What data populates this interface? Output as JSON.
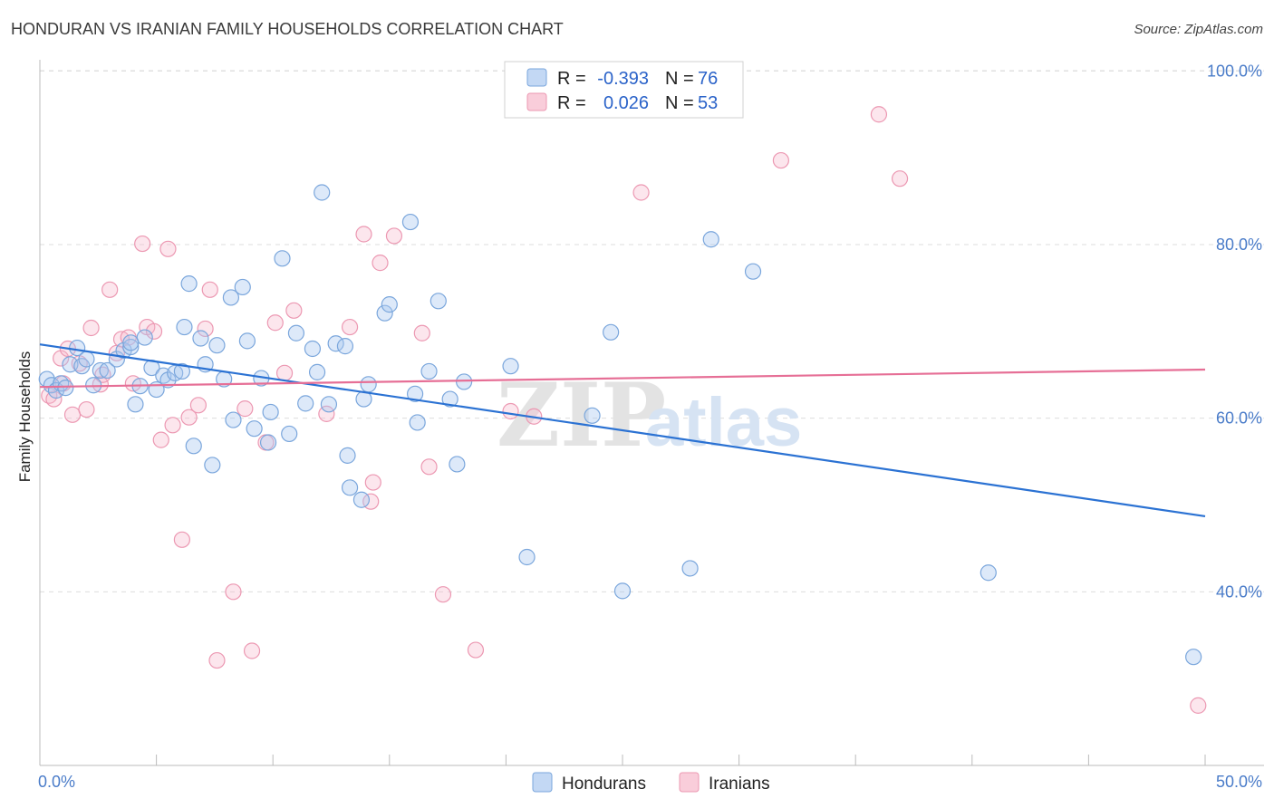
{
  "title": "HONDURAN VS IRANIAN FAMILY HOUSEHOLDS CORRELATION CHART",
  "source": "Source: ZipAtlas.com",
  "watermark": {
    "zip": "ZIP",
    "atlas": "atlas"
  },
  "legend": {
    "rows": [
      {
        "r_label": "R =",
        "r_value": "-0.393",
        "n_label": "N =",
        "n_value": "76"
      },
      {
        "r_label": "R =",
        "r_value": "0.026",
        "n_label": "N =",
        "n_value": "53"
      }
    ]
  },
  "bottom_legend": [
    "Hondurans",
    "Iranians"
  ],
  "colors": {
    "blue_fill": "#a9c8ef",
    "blue_stroke": "#7aa6dc",
    "blue_line": "#2b72d3",
    "pink_fill": "#f6b8cb",
    "pink_stroke": "#ec98b2",
    "pink_line": "#e66f96",
    "axis_text": "#4a7cc9",
    "grid": "#dddddd"
  },
  "chart_data": {
    "type": "scatter",
    "title": "HONDURAN VS IRANIAN FAMILY HOUSEHOLDS CORRELATION CHART",
    "xlabel": "",
    "ylabel": "Family Households",
    "xlim": [
      0,
      50
    ],
    "ylim": [
      20,
      104
    ],
    "x_tick_labels": [
      "0.0%",
      "50.0%"
    ],
    "y_ticks": [
      40,
      60,
      80,
      100
    ],
    "y_tick_labels": [
      "40.0%",
      "60.0%",
      "80.0%",
      "100.0%"
    ],
    "grid": true,
    "legend_position": "top-center",
    "series": [
      {
        "name": "Hondurans",
        "r": -0.393,
        "n": 76,
        "trend": {
          "x": [
            0,
            50
          ],
          "y": [
            68.5,
            48.7
          ]
        },
        "points": [
          [
            0.3,
            64.5
          ],
          [
            0.5,
            63.8
          ],
          [
            0.7,
            63.2
          ],
          [
            0.9,
            64.0
          ],
          [
            1.1,
            63.5
          ],
          [
            1.3,
            66.2
          ],
          [
            1.6,
            68.1
          ],
          [
            1.8,
            66.0
          ],
          [
            2.0,
            66.8
          ],
          [
            2.3,
            63.8
          ],
          [
            2.6,
            65.5
          ],
          [
            2.9,
            65.5
          ],
          [
            3.3,
            66.8
          ],
          [
            3.6,
            67.8
          ],
          [
            3.9,
            68.2
          ],
          [
            4.1,
            61.6
          ],
          [
            4.3,
            63.7
          ],
          [
            4.5,
            69.3
          ],
          [
            4.8,
            65.8
          ],
          [
            5.0,
            63.3
          ],
          [
            5.3,
            64.9
          ],
          [
            5.5,
            64.4
          ],
          [
            5.8,
            65.2
          ],
          [
            6.1,
            65.4
          ],
          [
            6.2,
            70.5
          ],
          [
            6.4,
            75.5
          ],
          [
            6.6,
            56.8
          ],
          [
            6.9,
            69.2
          ],
          [
            7.1,
            66.2
          ],
          [
            7.4,
            54.6
          ],
          [
            7.6,
            68.4
          ],
          [
            7.9,
            64.5
          ],
          [
            8.2,
            73.9
          ],
          [
            8.3,
            59.8
          ],
          [
            8.7,
            75.1
          ],
          [
            8.9,
            68.9
          ],
          [
            9.2,
            58.8
          ],
          [
            9.5,
            64.6
          ],
          [
            9.8,
            57.2
          ],
          [
            9.9,
            60.7
          ],
          [
            10.4,
            78.4
          ],
          [
            10.7,
            58.2
          ],
          [
            11.0,
            69.8
          ],
          [
            11.4,
            61.7
          ],
          [
            11.7,
            68.0
          ],
          [
            11.9,
            65.3
          ],
          [
            12.1,
            86.0
          ],
          [
            12.4,
            61.6
          ],
          [
            12.7,
            68.6
          ],
          [
            13.1,
            68.3
          ],
          [
            13.2,
            55.7
          ],
          [
            13.3,
            52.0
          ],
          [
            13.8,
            50.6
          ],
          [
            13.9,
            62.2
          ],
          [
            14.1,
            63.9
          ],
          [
            14.8,
            72.1
          ],
          [
            15.0,
            73.1
          ],
          [
            15.9,
            82.6
          ],
          [
            16.1,
            62.8
          ],
          [
            16.2,
            59.5
          ],
          [
            16.7,
            65.4
          ],
          [
            17.1,
            73.5
          ],
          [
            17.6,
            62.2
          ],
          [
            17.9,
            54.7
          ],
          [
            18.2,
            64.2
          ],
          [
            20.2,
            66.0
          ],
          [
            20.9,
            44.0
          ],
          [
            23.7,
            60.3
          ],
          [
            24.5,
            69.9
          ],
          [
            25.0,
            40.1
          ],
          [
            27.9,
            42.7
          ],
          [
            28.8,
            80.6
          ],
          [
            30.6,
            76.9
          ],
          [
            40.7,
            42.2
          ],
          [
            49.5,
            32.5
          ],
          [
            3.9,
            68.7
          ]
        ]
      },
      {
        "name": "Iranians",
        "r": 0.026,
        "n": 53,
        "trend": {
          "x": [
            0,
            50
          ],
          "y": [
            63.6,
            65.6
          ]
        },
        "points": [
          [
            0.4,
            62.6
          ],
          [
            0.6,
            62.2
          ],
          [
            0.9,
            66.9
          ],
          [
            1.2,
            68.0
          ],
          [
            1.4,
            60.4
          ],
          [
            1.7,
            66.3
          ],
          [
            2.0,
            61.0
          ],
          [
            2.2,
            70.4
          ],
          [
            2.6,
            63.9
          ],
          [
            3.0,
            74.8
          ],
          [
            3.3,
            67.5
          ],
          [
            3.5,
            69.1
          ],
          [
            3.8,
            69.3
          ],
          [
            4.0,
            64.0
          ],
          [
            4.4,
            80.1
          ],
          [
            4.6,
            70.5
          ],
          [
            4.9,
            70.0
          ],
          [
            5.2,
            57.5
          ],
          [
            5.5,
            79.5
          ],
          [
            5.7,
            59.2
          ],
          [
            6.1,
            46.0
          ],
          [
            6.4,
            60.1
          ],
          [
            6.8,
            61.5
          ],
          [
            7.1,
            70.3
          ],
          [
            7.3,
            74.8
          ],
          [
            7.6,
            32.1
          ],
          [
            8.3,
            40.0
          ],
          [
            8.8,
            61.1
          ],
          [
            9.1,
            33.2
          ],
          [
            9.7,
            57.2
          ],
          [
            10.1,
            71.0
          ],
          [
            10.5,
            65.2
          ],
          [
            10.9,
            72.4
          ],
          [
            12.3,
            60.5
          ],
          [
            13.3,
            70.5
          ],
          [
            13.9,
            81.2
          ],
          [
            14.2,
            50.4
          ],
          [
            14.3,
            52.6
          ],
          [
            14.6,
            77.9
          ],
          [
            15.2,
            81.0
          ],
          [
            16.4,
            69.8
          ],
          [
            16.7,
            54.4
          ],
          [
            17.3,
            39.7
          ],
          [
            18.7,
            33.3
          ],
          [
            20.2,
            60.8
          ],
          [
            21.2,
            60.2
          ],
          [
            25.8,
            86.0
          ],
          [
            31.8,
            89.7
          ],
          [
            36.0,
            95.0
          ],
          [
            36.9,
            87.6
          ],
          [
            49.7,
            26.9
          ],
          [
            1.0,
            64.0
          ],
          [
            2.7,
            65.0
          ]
        ]
      }
    ]
  }
}
